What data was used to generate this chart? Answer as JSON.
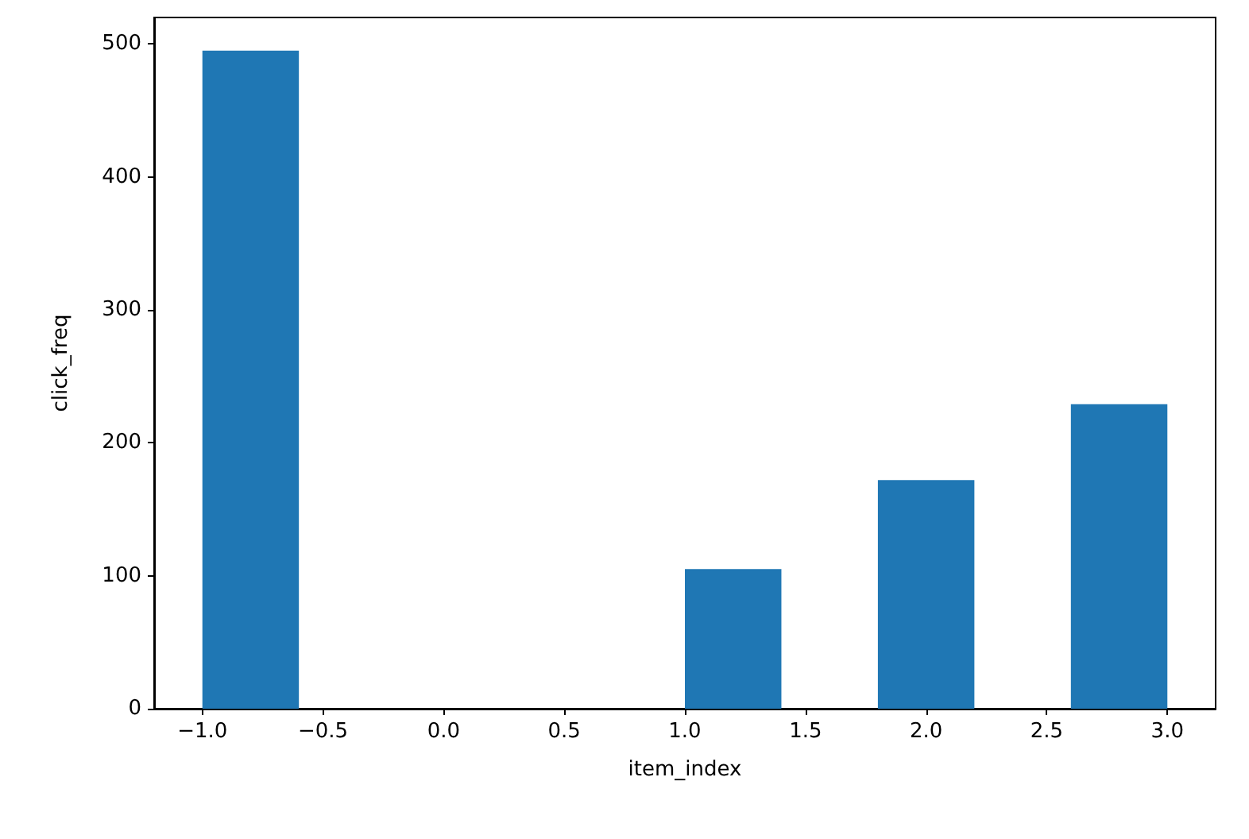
{
  "chart_data": {
    "type": "histogram",
    "xlabel": "item_index",
    "ylabel": "click_freq",
    "color": "#1f77b4",
    "bins": [
      -1.0,
      -0.6,
      -0.2,
      0.2,
      0.6,
      1.0,
      1.4,
      1.8,
      2.2,
      2.6,
      3.0
    ],
    "values": [
      495,
      0,
      0,
      0,
      0,
      105,
      0,
      172,
      0,
      229
    ],
    "xlim": [
      -1.2,
      3.2
    ],
    "xticks": [
      {
        "value": -1,
        "label": "−1.0"
      },
      {
        "value": -0.5,
        "label": "−0.5"
      },
      {
        "value": 0,
        "label": "0.0"
      },
      {
        "value": 0.5,
        "label": "0.5"
      },
      {
        "value": 1,
        "label": "1.0"
      },
      {
        "value": 1.5,
        "label": "1.5"
      },
      {
        "value": 2,
        "label": "2.0"
      },
      {
        "value": 2.5,
        "label": "2.5"
      },
      {
        "value": 3,
        "label": "3.0"
      }
    ],
    "ylim": [
      0,
      520
    ],
    "yticks": [
      0,
      100,
      200,
      300,
      400,
      500
    ],
    "grid": false
  }
}
